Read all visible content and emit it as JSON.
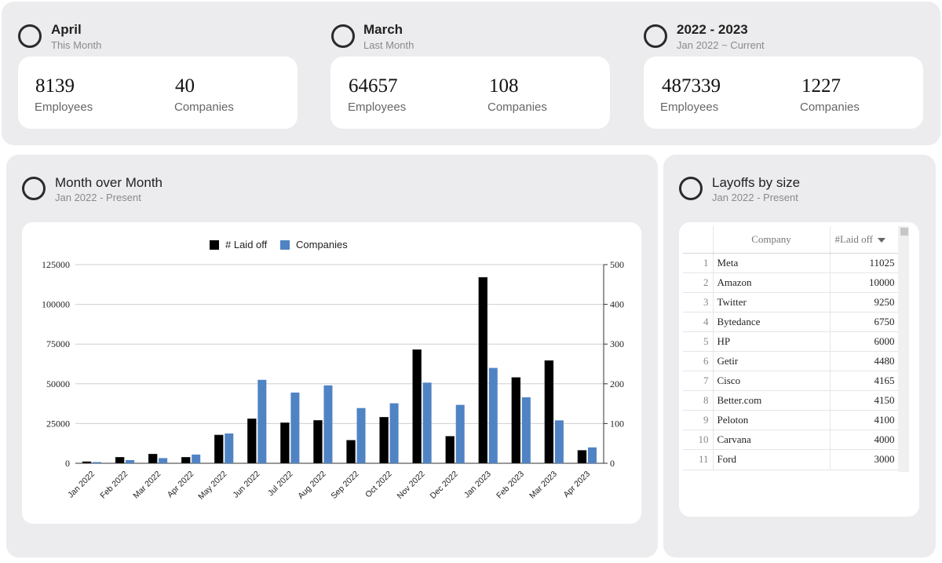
{
  "summary": [
    {
      "title": "April",
      "subtitle": "This Month",
      "employees": "8139",
      "employees_label": "Employees",
      "companies": "40",
      "companies_label": "Companies"
    },
    {
      "title": "March",
      "subtitle": "Last Month",
      "employees": "64657",
      "employees_label": "Employees",
      "companies": "108",
      "companies_label": "Companies"
    },
    {
      "title": "2022 - 2023",
      "subtitle": "Jan 2022 ~ Current",
      "employees": "487339",
      "employees_label": "Employees",
      "companies": "1227",
      "companies_label": "Companies"
    }
  ],
  "mom": {
    "title": "Month over Month",
    "subtitle": "Jan 2022 - Present"
  },
  "sizes": {
    "title": "Layoffs by size",
    "subtitle": "Jan 2022 - Present",
    "columns": [
      "Company",
      "#Laid off"
    ],
    "rows": [
      {
        "idx": "1",
        "company": "Meta",
        "value": "11025"
      },
      {
        "idx": "2",
        "company": "Amazon",
        "value": "10000"
      },
      {
        "idx": "3",
        "company": "Twitter",
        "value": "9250"
      },
      {
        "idx": "4",
        "company": "Bytedance",
        "value": "6750"
      },
      {
        "idx": "5",
        "company": "HP",
        "value": "6000"
      },
      {
        "idx": "6",
        "company": "Getir",
        "value": "4480"
      },
      {
        "idx": "7",
        "company": "Cisco",
        "value": "4165"
      },
      {
        "idx": "8",
        "company": "Better.com",
        "value": "4150"
      },
      {
        "idx": "9",
        "company": "Peloton",
        "value": "4100"
      },
      {
        "idx": "10",
        "company": "Carvana",
        "value": "4000"
      },
      {
        "idx": "11",
        "company": "Ford",
        "value": "3000"
      }
    ]
  },
  "chart_data": {
    "type": "bar",
    "title": "",
    "categories": [
      "Jan 2022",
      "Feb 2022",
      "Mar 2022",
      "Apr 2022",
      "May 2022",
      "Jun 2022",
      "Jul 2022",
      "Aug 2022",
      "Sep 2022",
      "Oct 2022",
      "Nov 2022",
      "Dec 2022",
      "Jan 2023",
      "Feb 2023",
      "Mar 2023",
      "Apr 2023"
    ],
    "series": [
      {
        "name": "# Laid off",
        "axis": "left",
        "color": "#000000",
        "values": [
          1000,
          3800,
          5800,
          3800,
          17800,
          28000,
          25500,
          27000,
          14500,
          29000,
          71500,
          17000,
          117000,
          54000,
          64657,
          8139
        ]
      },
      {
        "name": "Companies",
        "axis": "right",
        "color": "#4f83c4",
        "values": [
          3,
          8,
          13,
          22,
          75,
          210,
          178,
          196,
          139,
          151,
          203,
          147,
          240,
          166,
          108,
          40
        ]
      }
    ],
    "yleft": {
      "min": 0,
      "max": 125000,
      "ticks": [
        "0",
        "25000",
        "50000",
        "75000",
        "100000",
        "125000"
      ]
    },
    "yright": {
      "min": 0,
      "max": 500,
      "ticks": [
        "0",
        "100",
        "200",
        "300",
        "400",
        "500"
      ]
    },
    "legend": "top-center",
    "grid": true
  }
}
